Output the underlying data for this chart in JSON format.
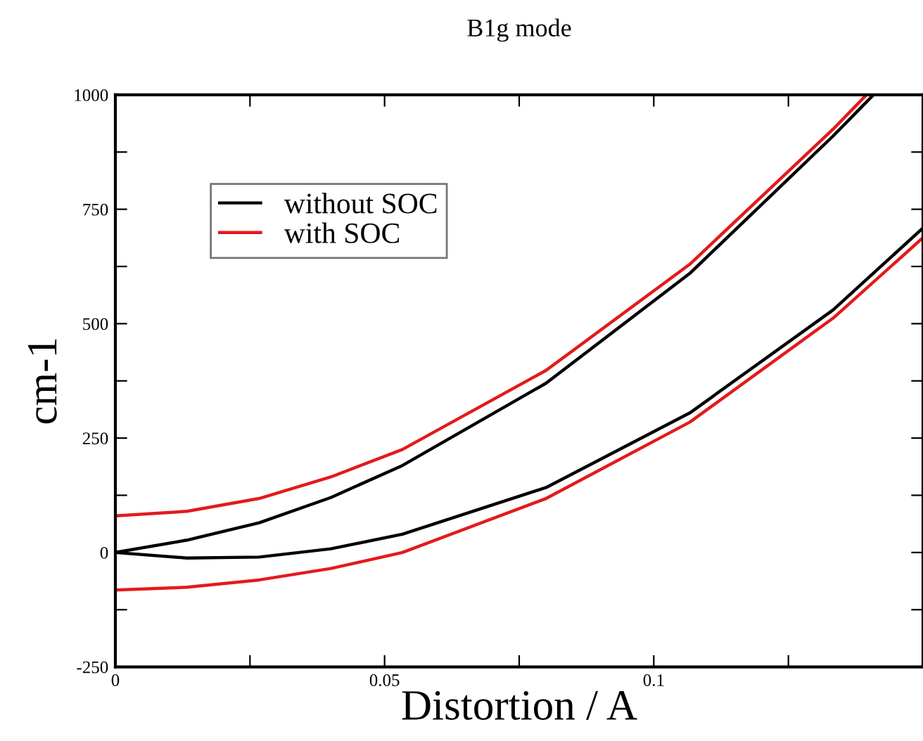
{
  "chart_data": {
    "type": "line",
    "title": "B1g mode",
    "xlabel": "Distortion / A",
    "ylabel": "cm-1",
    "xlim": [
      0,
      0.15
    ],
    "ylim": [
      -250,
      1000
    ],
    "xticks": [
      0,
      {
        "value": 0.025,
        "label": null
      },
      0.05,
      {
        "value": 0.075,
        "label": null
      },
      0.1,
      {
        "value": 0.125,
        "label": null
      }
    ],
    "yticks": [
      -250,
      {
        "value": -125,
        "label": null
      },
      0,
      {
        "value": 125,
        "label": null
      },
      250,
      {
        "value": 375,
        "label": null
      },
      500,
      {
        "value": 625,
        "label": null
      },
      750,
      {
        "value": 875,
        "label": null
      },
      1000
    ],
    "grid": false,
    "legend": "top left",
    "marker": "none",
    "line_style": "solid",
    "series": [
      {
        "name": "without SOC",
        "color": "#000000",
        "x": [
          0,
          0.0133,
          0.0267,
          0.04,
          0.0533,
          0.08,
          0.1067,
          0.1333,
          0.1408
        ],
        "values": [
          0,
          27,
          65,
          120,
          190,
          370,
          610,
          910,
          1000
        ]
      },
      {
        "name": "with SOC",
        "color": "#e31a1c",
        "x": [
          0,
          0.0133,
          0.0267,
          0.04,
          0.0533,
          0.08,
          0.1067,
          0.1333,
          0.1395
        ],
        "values": [
          80,
          90,
          118,
          165,
          225,
          398,
          630,
          925,
          1000
        ]
      },
      {
        "color": "#000000",
        "x": [
          0,
          0.0133,
          0.0267,
          0.04,
          0.0533,
          0.08,
          0.1067,
          0.1333,
          0.15
        ],
        "values": [
          0,
          -12,
          -10,
          8,
          40,
          142,
          305,
          530,
          709
        ]
      },
      {
        "color": "#e31a1c",
        "x": [
          0,
          0.0133,
          0.0267,
          0.04,
          0.0533,
          0.08,
          0.1067,
          0.1333,
          0.15
        ],
        "values": [
          -82,
          -76,
          -60,
          -35,
          0,
          118,
          285,
          512,
          688
        ]
      }
    ]
  }
}
